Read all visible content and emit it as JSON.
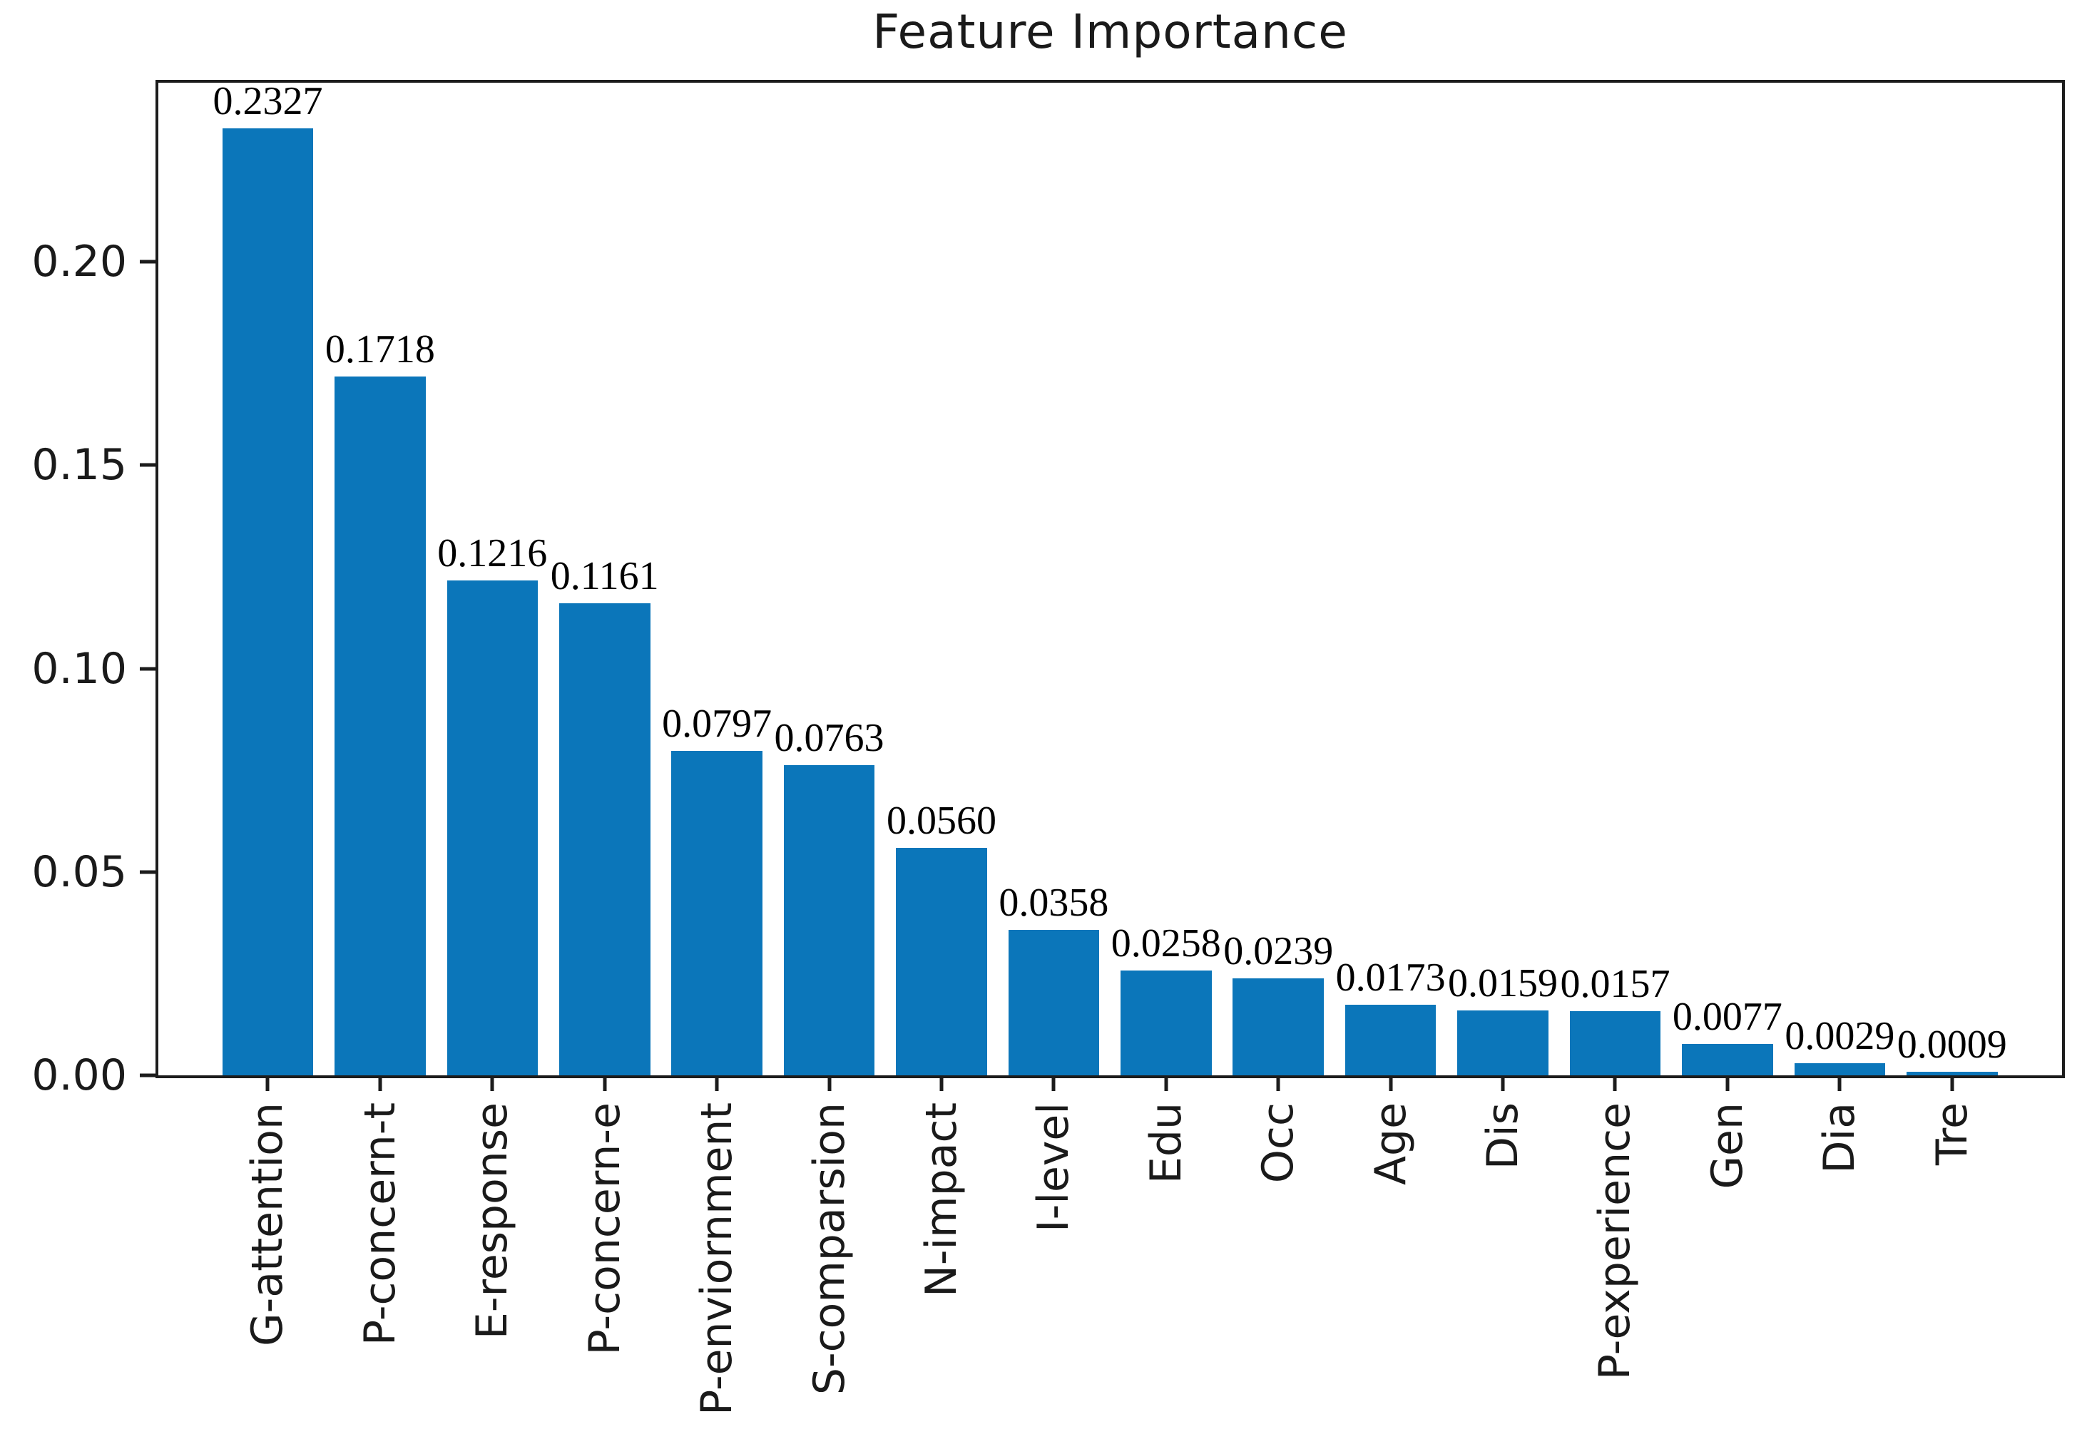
{
  "title": "Feature Importance",
  "chart_data": {
    "type": "bar",
    "title": "Feature Importance",
    "categories": [
      "G-attention",
      "P-concern-t",
      "E-response",
      "P-concern-e",
      "P-enviornment",
      "S-comparsion",
      "N-impact",
      "I-level",
      "Edu",
      "Occ",
      "Age",
      "Dis",
      "P-experience",
      "Gen",
      "Dia",
      "Tre"
    ],
    "values": [
      0.2327,
      0.1718,
      0.1216,
      0.1161,
      0.0797,
      0.0763,
      0.056,
      0.0358,
      0.0258,
      0.0239,
      0.0173,
      0.0159,
      0.0157,
      0.0077,
      0.0029,
      0.0009
    ],
    "value_labels": [
      "0.2327",
      "0.1718",
      "0.1216",
      "0.1161",
      "0.0797",
      "0.0763",
      "0.0560",
      "0.0358",
      "0.0258",
      "0.0239",
      "0.0173",
      "0.0159",
      "0.0157",
      "0.0077",
      "0.0029",
      "0.0009"
    ],
    "xlabel": "",
    "ylabel": "",
    "ylim": [
      0,
      0.244
    ],
    "ytick_labels": [
      "0.00",
      "0.05",
      "0.10",
      "0.15",
      "0.20"
    ],
    "ytick_values": [
      0.0,
      0.05,
      0.1,
      0.15,
      0.2
    ],
    "xtick_rotation": 90,
    "grid": false,
    "legend_position": "none",
    "bar_color": "#0b76ba",
    "axis_color": "#1c1c1c",
    "background_color": "#ffffff"
  }
}
